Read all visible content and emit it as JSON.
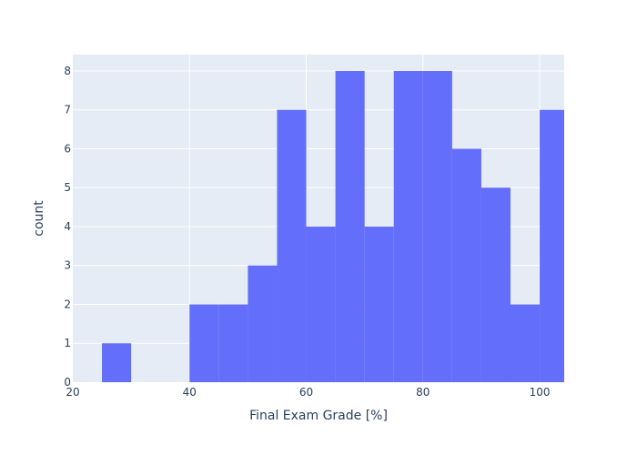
{
  "chart_data": {
    "type": "bar",
    "subtype": "histogram",
    "bin_width": 5,
    "bins": [
      {
        "x0": 25,
        "x1": 30,
        "count": 1
      },
      {
        "x0": 30,
        "x1": 35,
        "count": 0
      },
      {
        "x0": 35,
        "x1": 40,
        "count": 0
      },
      {
        "x0": 40,
        "x1": 45,
        "count": 2
      },
      {
        "x0": 45,
        "x1": 50,
        "count": 2
      },
      {
        "x0": 50,
        "x1": 55,
        "count": 3
      },
      {
        "x0": 55,
        "x1": 60,
        "count": 7
      },
      {
        "x0": 60,
        "x1": 65,
        "count": 4
      },
      {
        "x0": 65,
        "x1": 70,
        "count": 8
      },
      {
        "x0": 70,
        "x1": 75,
        "count": 4
      },
      {
        "x0": 75,
        "x1": 80,
        "count": 8
      },
      {
        "x0": 80,
        "x1": 85,
        "count": 8
      },
      {
        "x0": 85,
        "x1": 90,
        "count": 6
      },
      {
        "x0": 90,
        "x1": 95,
        "count": 5
      },
      {
        "x0": 95,
        "x1": 100,
        "count": 2
      },
      {
        "x0": 100,
        "x1": 105,
        "count": 7
      }
    ],
    "title": "",
    "xlabel": "Final Exam Grade [%]",
    "ylabel": "count",
    "xlim": [
      20,
      104.2
    ],
    "ylim": [
      0,
      8.42
    ],
    "xticks": [
      20,
      40,
      60,
      80,
      100
    ],
    "yticks": [
      0,
      1,
      2,
      3,
      4,
      5,
      6,
      7,
      8
    ],
    "grid": true,
    "legend": "none",
    "colors": {
      "bar": "#636efa",
      "plot_bg": "#e5ecf6",
      "grid": "#ffffff",
      "text": "#2a3f5f"
    }
  }
}
